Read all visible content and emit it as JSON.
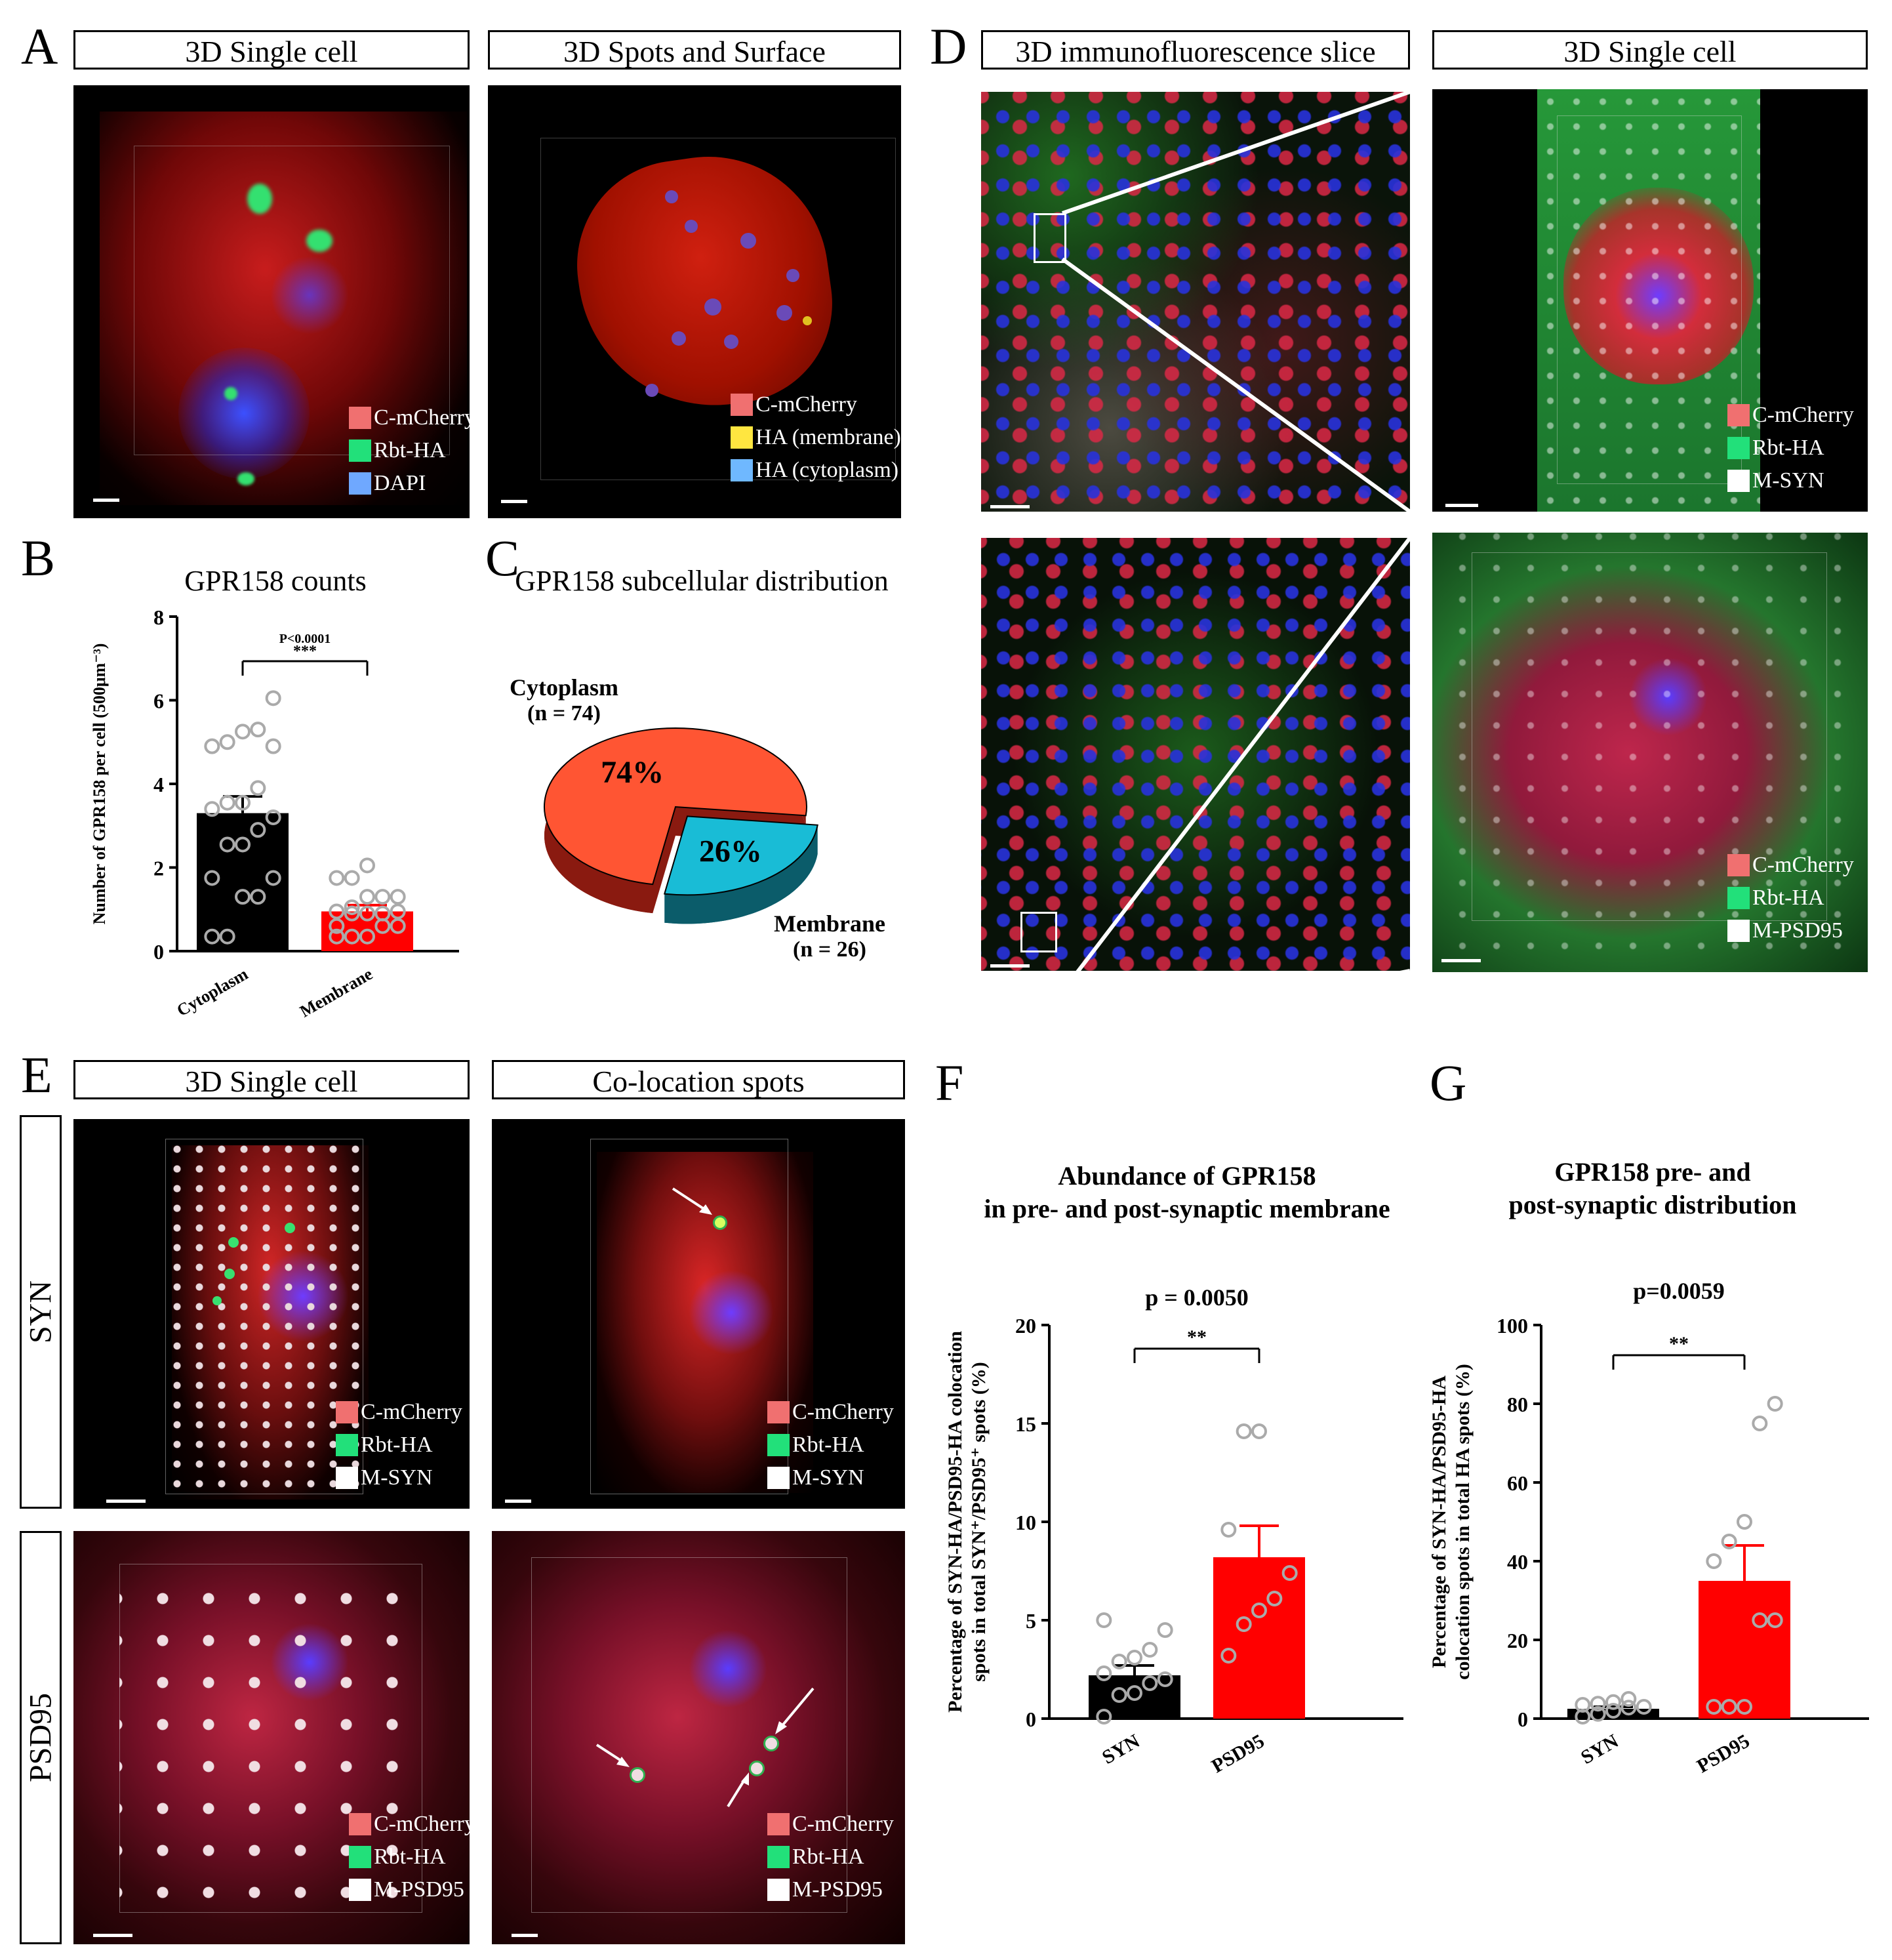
{
  "panels": {
    "A": {
      "letter": "A",
      "left_title": "3D Single cell",
      "right_title": "3D Spots and Surface",
      "left_legend": [
        "C-mCherry",
        "Rbt-HA",
        "DAPI"
      ],
      "right_legend": [
        "C-mCherry",
        "HA (membrane)",
        "HA (cytoplasm)"
      ]
    },
    "B": {
      "letter": "B",
      "title": "GPR158 counts"
    },
    "C": {
      "letter": "C",
      "title": "GPR158 subcellular distribution"
    },
    "D": {
      "letter": "D",
      "left_title": "3D immunofluorescence slice",
      "right_title": "3D Single cell",
      "top_legend": [
        "C-mCherry",
        "Rbt-HA",
        "M-SYN"
      ],
      "bottom_legend": [
        "C-mCherry",
        "Rbt-HA",
        "M-PSD95"
      ]
    },
    "E": {
      "letter": "E",
      "left_title": "3D Single cell",
      "right_title": "Co-location spots",
      "row_syn": "SYN",
      "row_psd95": "PSD95",
      "syn_legend": [
        "C-mCherry",
        "Rbt-HA",
        "M-SYN"
      ],
      "psd_legend": [
        "C-mCherry",
        "Rbt-HA",
        "M-PSD95"
      ]
    },
    "F": {
      "letter": "F",
      "title_line1": "Abundance of GPR158",
      "title_line2": "in pre- and post-synaptic membrane"
    },
    "G": {
      "letter": "G",
      "title_line1": "GPR158 pre- and",
      "title_line2": "post-synaptic distribution"
    }
  },
  "legend_colors": {
    "mcherry": "#f07070",
    "ha": "#22e07a",
    "dapi": "#6fa8ff",
    "membrane": "#ffe640",
    "cytoplasm": "#6fb8ff",
    "white": "#ffffff"
  },
  "chart_data": [
    {
      "id": "B",
      "type": "bar",
      "title": "GPR158 counts",
      "ylabel": "Number of GPR158 per cell (500μm⁻³)",
      "categories": [
        "Cytoplasm",
        "Membrane"
      ],
      "values": [
        3.3,
        0.95
      ],
      "errors": [
        0.4,
        0.15
      ],
      "colors": [
        "#000000",
        "#ff0000"
      ],
      "ylim": [
        0,
        8
      ],
      "yticks": [
        0,
        2,
        4,
        6,
        8
      ],
      "points": [
        [
          0.35,
          0.35,
          1.3,
          1.3,
          1.75,
          1.75,
          2.55,
          2.55,
          2.9,
          3.2,
          3.4,
          3.55,
          3.55,
          3.9,
          4.9,
          4.9,
          5.0,
          5.25,
          5.3,
          6.05
        ],
        [
          0.35,
          0.35,
          0.35,
          0.6,
          0.6,
          0.6,
          0.9,
          0.9,
          0.9,
          0.95,
          0.95,
          1.05,
          1.3,
          1.3,
          1.3,
          1.75,
          1.75,
          2.05
        ]
      ],
      "significance": {
        "p": "P<0.0001",
        "stars": "***"
      }
    },
    {
      "id": "C",
      "type": "pie",
      "title": "GPR158 subcellular distribution",
      "slices": [
        {
          "label": "Cytoplasm",
          "n_label": "(n = 74)",
          "value": 74,
          "pct_label": "74%",
          "color": "#ff5533"
        },
        {
          "label": "Membrane",
          "n_label": "(n = 26)",
          "value": 26,
          "pct_label": "26%",
          "color": "#19bcd6"
        }
      ]
    },
    {
      "id": "F",
      "type": "bar",
      "title": "Abundance of GPR158 in pre- and post-synaptic membrane",
      "ylabel_line1": "Percentage of SYN-HA/PSD95-HA colocation",
      "ylabel_line2": "spots in total SYN⁺/PSD95⁺ spots (%)",
      "categories": [
        "SYN",
        "PSD95"
      ],
      "values": [
        2.2,
        8.2
      ],
      "errors": [
        0.5,
        1.6
      ],
      "colors": [
        "#000000",
        "#ff0000"
      ],
      "ylim": [
        0,
        20
      ],
      "yticks": [
        0,
        5,
        10,
        15,
        20
      ],
      "points": [
        [
          0.1,
          1.2,
          1.3,
          1.8,
          2.0,
          2.3,
          2.9,
          3.1,
          3.5,
          4.5,
          5.0
        ],
        [
          3.2,
          4.8,
          5.5,
          6.1,
          7.4,
          9.6,
          14.6,
          14.6
        ]
      ],
      "significance": {
        "p": "p = 0.0050",
        "stars": "**"
      }
    },
    {
      "id": "G",
      "type": "bar",
      "title": "GPR158 pre- and post-synaptic distribution",
      "ylabel_line1": "Percentage of SYN-HA/PSD95-HA",
      "ylabel_line2": "colocation spots in total HA spots (%)",
      "categories": [
        "SYN",
        "PSD95"
      ],
      "values": [
        2.5,
        35
      ],
      "errors": [
        0.5,
        9
      ],
      "colors": [
        "#000000",
        "#ff0000"
      ],
      "ylim": [
        0,
        100
      ],
      "yticks": [
        0,
        20,
        40,
        60,
        80,
        100
      ],
      "points": [
        [
          0.5,
          1.2,
          2.0,
          2.8,
          3.0,
          3.5,
          3.8,
          4.2,
          5.0
        ],
        [
          3,
          3,
          3,
          25,
          25,
          40,
          45,
          50,
          75,
          80
        ]
      ],
      "significance": {
        "p": "p=0.0059",
        "stars": "**"
      }
    }
  ]
}
